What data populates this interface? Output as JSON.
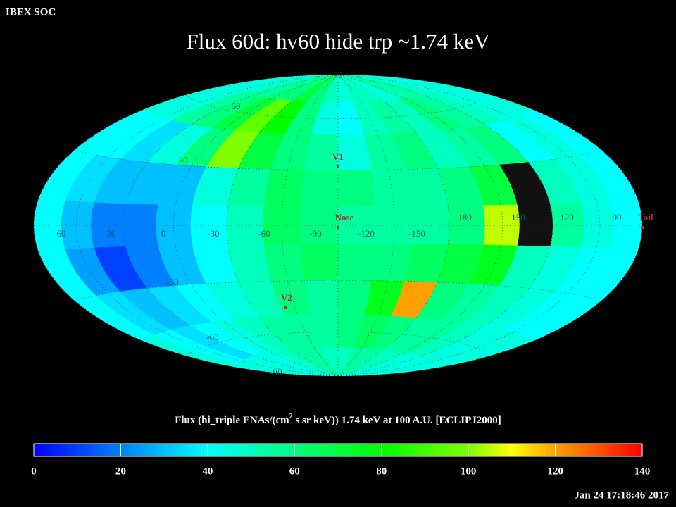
{
  "header": {
    "org": "IBEX SOC",
    "title": "Flux   60d: hv60 hide trp ~1.74 keV"
  },
  "map": {
    "longitude_labels": [
      60,
      30,
      0,
      -30,
      -60,
      -90,
      -120,
      -150,
      180,
      150,
      120,
      90
    ],
    "latitude_labels": [
      90,
      60,
      30,
      -30,
      -60,
      -90
    ],
    "markers": [
      {
        "label": "V1"
      },
      {
        "label": "Nose"
      },
      {
        "label": "V2"
      },
      {
        "label": "Tail"
      }
    ],
    "flux": [
      [
        45,
        45,
        50,
        55,
        60,
        60,
        70,
        60,
        50,
        45,
        50,
        50,
        45,
        50,
        55,
        50,
        45,
        45
      ],
      [
        45,
        45,
        55,
        60,
        70,
        95,
        80,
        60,
        45,
        40,
        50,
        55,
        50,
        60,
        55,
        50,
        45,
        45
      ],
      [
        40,
        40,
        35,
        45,
        60,
        100,
        70,
        60,
        55,
        45,
        55,
        60,
        50,
        55,
        60,
        40,
        45,
        40
      ],
      [
        40,
        35,
        30,
        30,
        30,
        45,
        55,
        65,
        60,
        60,
        55,
        55,
        60,
        70,
        null,
        50,
        45,
        40
      ],
      [
        40,
        30,
        20,
        20,
        30,
        40,
        50,
        65,
        60,
        55,
        55,
        55,
        60,
        105,
        null,
        55,
        45,
        40
      ],
      [
        40,
        25,
        10,
        20,
        30,
        40,
        50,
        60,
        65,
        60,
        60,
        65,
        70,
        75,
        50,
        45,
        40,
        40
      ],
      [
        40,
        35,
        30,
        35,
        40,
        45,
        50,
        60,
        55,
        60,
        75,
        120,
        60,
        55,
        50,
        45,
        40,
        40
      ],
      [
        45,
        40,
        35,
        40,
        45,
        50,
        55,
        55,
        55,
        60,
        65,
        60,
        55,
        55,
        50,
        45,
        45,
        45
      ],
      [
        45,
        45,
        45,
        45,
        45,
        50,
        55,
        55,
        50,
        50,
        55,
        55,
        50,
        50,
        45,
        45,
        45,
        45
      ]
    ]
  },
  "colorbar": {
    "title_parts": [
      "Flux (hi_triple ENAs/(cm",
      "2",
      " s sr keV))  1.74 keV at 100 A.U. [ECLIPJ2000]"
    ],
    "lim": [
      0,
      140
    ],
    "ticks": [
      0,
      20,
      40,
      60,
      80,
      100,
      120,
      140
    ]
  },
  "footer": {
    "timestamp": "Jan 24 17:18:46 2017"
  }
}
